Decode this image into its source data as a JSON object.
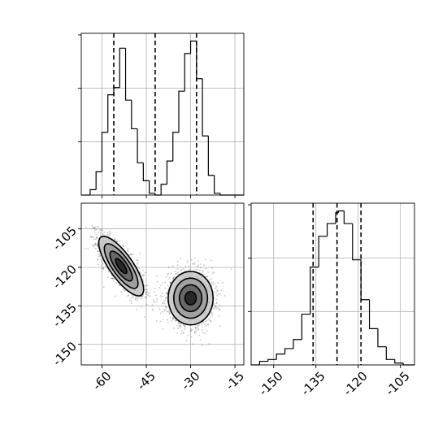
{
  "chart_data": {
    "type": "corner",
    "grid": true,
    "panels": [
      {
        "id": "hist_x",
        "type": "histogram",
        "x_range": [
          -67,
          -12
        ],
        "xticks": [
          -60,
          -45,
          -30,
          -15
        ],
        "quantiles": [
          -56,
          -42,
          -28
        ],
        "bins": [
          {
            "x0": -67,
            "x1": -64,
            "count": 0
          },
          {
            "x0": -64,
            "x1": -62,
            "count": 3
          },
          {
            "x0": -62,
            "x1": -60,
            "count": 13
          },
          {
            "x0": -60,
            "x1": -58,
            "count": 35
          },
          {
            "x0": -58,
            "x1": -56,
            "count": 56
          },
          {
            "x0": -56,
            "x1": -54,
            "count": 60
          },
          {
            "x0": -54,
            "x1": -52,
            "count": 82
          },
          {
            "x0": -52,
            "x1": -50,
            "count": 53
          },
          {
            "x0": -50,
            "x1": -48,
            "count": 37
          },
          {
            "x0": -48,
            "x1": -46,
            "count": 18
          },
          {
            "x0": -46,
            "x1": -44,
            "count": 8
          },
          {
            "x0": -44,
            "x1": -42,
            "count": 1
          },
          {
            "x0": -42,
            "x1": -40,
            "count": 0
          },
          {
            "x0": -40,
            "x1": -38,
            "count": 6
          },
          {
            "x0": -38,
            "x1": -36,
            "count": 19
          },
          {
            "x0": -36,
            "x1": -34,
            "count": 35
          },
          {
            "x0": -34,
            "x1": -32,
            "count": 58
          },
          {
            "x0": -32,
            "x1": -30,
            "count": 79
          },
          {
            "x0": -30,
            "x1": -28,
            "count": 86
          },
          {
            "x0": -28,
            "x1": -26,
            "count": 65
          },
          {
            "x0": -26,
            "x1": -24,
            "count": 33
          },
          {
            "x0": -24,
            "x1": -22,
            "count": 11
          },
          {
            "x0": -22,
            "x1": -20,
            "count": 1
          },
          {
            "x0": -20,
            "x1": -12,
            "count": 0
          }
        ]
      },
      {
        "id": "scatter_xy",
        "type": "scatter_density",
        "x_range": [
          -67,
          -12
        ],
        "y_range": [
          -158,
          -95
        ],
        "xticks": [
          -60,
          -45,
          -30,
          -15
        ],
        "yticks": [
          -105,
          -120,
          -135,
          -150
        ],
        "clusters": [
          {
            "center": [
              -53.5,
              -119.5
            ],
            "sx": 3.8,
            "sy": 5.8,
            "corr": -0.78,
            "count": 1700
          },
          {
            "center": [
              -30,
              -132
            ],
            "sx": 3.8,
            "sy": 5.2,
            "corr": 0.0,
            "count": 1700
          }
        ],
        "contour_sigmas": [
          0.5,
          1.0,
          1.5,
          2.0
        ]
      },
      {
        "id": "hist_y",
        "type": "histogram",
        "x_range": [
          -158,
          -100
        ],
        "xticks": [
          -150,
          -135,
          -120,
          -105
        ],
        "quantiles": [
          -136,
          -127.5,
          -119
        ],
        "bins": [
          {
            "x0": -158,
            "x1": -155,
            "count": 0
          },
          {
            "x0": -155,
            "x1": -152,
            "count": 2
          },
          {
            "x0": -152,
            "x1": -149,
            "count": 3
          },
          {
            "x0": -149,
            "x1": -146,
            "count": 6
          },
          {
            "x0": -146,
            "x1": -143,
            "count": 9
          },
          {
            "x0": -143,
            "x1": -140,
            "count": 14
          },
          {
            "x0": -140,
            "x1": -137,
            "count": 28
          },
          {
            "x0": -137,
            "x1": -134,
            "count": 54
          },
          {
            "x0": -134,
            "x1": -131,
            "count": 71
          },
          {
            "x0": -131,
            "x1": -128,
            "count": 78
          },
          {
            "x0": -128,
            "x1": -127,
            "count": 84
          },
          {
            "x0": -127,
            "x1": -125,
            "count": 85
          },
          {
            "x0": -125,
            "x1": -122,
            "count": 78
          },
          {
            "x0": -122,
            "x1": -119,
            "count": 58
          },
          {
            "x0": -119,
            "x1": -116,
            "count": 36
          },
          {
            "x0": -116,
            "x1": -113,
            "count": 20
          },
          {
            "x0": -113,
            "x1": -110,
            "count": 10
          },
          {
            "x0": -110,
            "x1": -107,
            "count": 3
          },
          {
            "x0": -107,
            "x1": -104,
            "count": 1
          },
          {
            "x0": -104,
            "x1": -100,
            "count": 0
          }
        ]
      }
    ]
  }
}
